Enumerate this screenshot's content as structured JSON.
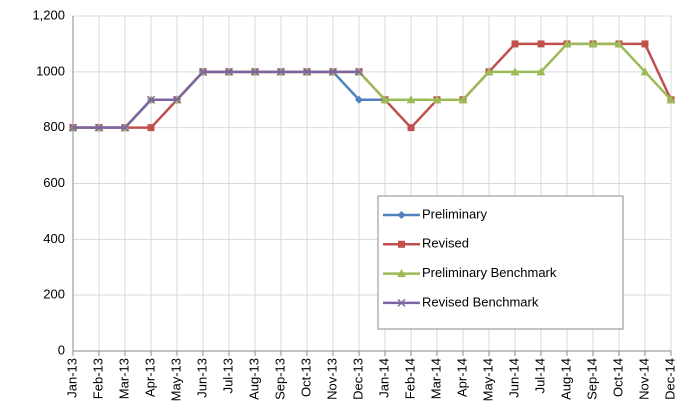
{
  "chart_data": {
    "type": "line",
    "categories": [
      "Jan-13",
      "Feb-13",
      "Mar-13",
      "Apr-13",
      "May-13",
      "Jun-13",
      "Jul-13",
      "Aug-13",
      "Sep-13",
      "Oct-13",
      "Nov-13",
      "Dec-13",
      "Jan-14",
      "Feb-14",
      "Mar-14",
      "Apr-14",
      "May-14",
      "Jun-14",
      "Jul-14",
      "Aug-14",
      "Sep-14",
      "Oct-14",
      "Nov-14",
      "Dec-14"
    ],
    "series": [
      {
        "name": "Preliminary",
        "color": "#4f81bd",
        "marker": "diamond",
        "values": [
          800,
          800,
          800,
          900,
          900,
          1000,
          1000,
          1000,
          1000,
          1000,
          1000,
          900,
          900,
          null,
          null,
          null,
          null,
          null,
          null,
          null,
          null,
          null,
          null,
          null
        ]
      },
      {
        "name": "Revised",
        "color": "#c0504d",
        "marker": "square",
        "values": [
          800,
          800,
          800,
          800,
          900,
          1000,
          1000,
          1000,
          1000,
          1000,
          1000,
          1000,
          900,
          800,
          900,
          900,
          1000,
          1100,
          1100,
          1100,
          1100,
          1100,
          1100,
          900
        ]
      },
      {
        "name": "Preliminary Benchmark",
        "color": "#9bbb59",
        "marker": "triangle",
        "values": [
          800,
          800,
          800,
          900,
          900,
          1000,
          1000,
          1000,
          1000,
          1000,
          1000,
          1000,
          900,
          900,
          900,
          900,
          1000,
          1000,
          1000,
          1100,
          1100,
          1100,
          1000,
          900
        ]
      },
      {
        "name": "Revised Benchmark",
        "color": "#8064a2",
        "marker": "x",
        "values": [
          800,
          800,
          800,
          900,
          900,
          1000,
          1000,
          1000,
          1000,
          1000,
          1000,
          1000,
          null,
          null,
          null,
          null,
          null,
          null,
          null,
          null,
          null,
          null,
          null,
          null
        ]
      }
    ],
    "ylim": [
      0,
      1200
    ],
    "yticks": [
      0,
      200,
      400,
      600,
      800,
      1000,
      {
        "value": 1200,
        "label": "1,200"
      }
    ],
    "grid": true
  }
}
